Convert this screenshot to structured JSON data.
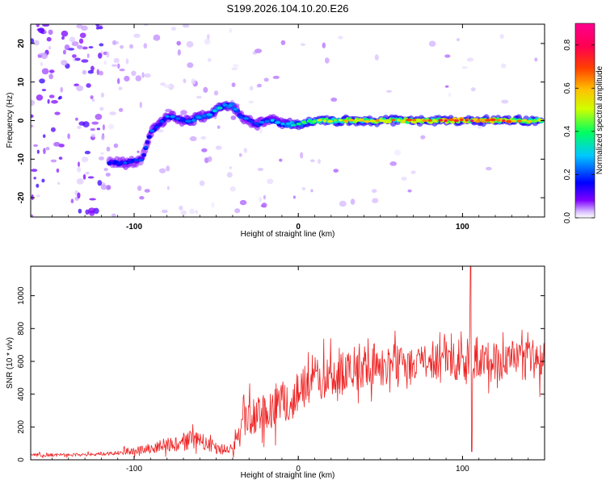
{
  "title": "S199.2026.104.10.20.E26",
  "chart_data": [
    {
      "type": "heatmap",
      "name": "spectrogram",
      "xlabel": "Height of straight line (km)",
      "ylabel": "Frequency (Hz)",
      "xlim": [
        -163,
        150
      ],
      "ylim": [
        -25,
        25
      ],
      "x_ticks": [
        -100,
        0,
        100
      ],
      "y_ticks": [
        -20,
        -10,
        0,
        10,
        20
      ],
      "colorbar": {
        "label": "Normalized spectral amplitude",
        "range": [
          0,
          0.9
        ],
        "ticks": [
          0.0,
          0.2,
          0.4,
          0.6,
          0.8
        ],
        "colors": [
          "#ffffff",
          "#8000ff",
          "#0000ff",
          "#00ffff",
          "#00ff00",
          "#ffff00",
          "#ff8000",
          "#ff0000",
          "#ff00a0"
        ]
      },
      "ridge": {
        "x": [
          -115,
          -105,
          -95,
          -90,
          -85,
          -80,
          -75,
          -70,
          -65,
          -60,
          -55,
          -50,
          -45,
          -40,
          -35,
          -30,
          -25,
          -20,
          -15,
          -10,
          -5,
          0,
          10,
          30,
          50,
          70,
          90,
          110,
          130,
          148
        ],
        "freq": [
          -11,
          -11,
          -10,
          -3,
          -1,
          1,
          1,
          0,
          0,
          1,
          1,
          3,
          4,
          4,
          1,
          0,
          -1,
          0,
          0,
          -1,
          -1,
          -1,
          0,
          0,
          0,
          0,
          0,
          0,
          0,
          0
        ],
        "amplitude": [
          0.2,
          0.25,
          0.2,
          0.25,
          0.25,
          0.3,
          0.25,
          0.25,
          0.3,
          0.3,
          0.3,
          0.35,
          0.35,
          0.3,
          0.25,
          0.25,
          0.25,
          0.25,
          0.3,
          0.3,
          0.35,
          0.4,
          0.5,
          0.6,
          0.65,
          0.7,
          0.75,
          0.85,
          0.75,
          0.6
        ]
      }
    },
    {
      "type": "line",
      "name": "snr",
      "xlabel": "Height of straight line (km)",
      "ylabel": "SNR (10 * v/v)",
      "xlim": [
        -163,
        150
      ],
      "ylim": [
        0,
        1180
      ],
      "x_ticks": [
        -100,
        0,
        100
      ],
      "y_ticks": [
        0,
        200,
        400,
        600,
        800,
        1000
      ],
      "color": "#ee2222",
      "series": [
        {
          "name": "SNR envelope",
          "x": [
            -163,
            -150,
            -140,
            -130,
            -120,
            -110,
            -105,
            -100,
            -95,
            -90,
            -85,
            -80,
            -75,
            -70,
            -65,
            -60,
            -55,
            -50,
            -45,
            -40,
            -38,
            -35,
            -30,
            -25,
            -20,
            -15,
            -10,
            -5,
            0,
            5,
            10,
            15,
            20,
            25,
            30,
            35,
            40,
            45,
            50,
            55,
            60,
            65,
            70,
            75,
            80,
            85,
            90,
            95,
            100,
            103,
            105,
            107,
            110,
            115,
            120,
            125,
            130,
            135,
            140,
            145,
            150
          ],
          "mean": [
            30,
            28,
            30,
            32,
            35,
            40,
            55,
            55,
            60,
            70,
            80,
            90,
            100,
            110,
            120,
            115,
            90,
            75,
            65,
            60,
            140,
            200,
            250,
            300,
            320,
            330,
            360,
            380,
            400,
            430,
            470,
            500,
            520,
            530,
            540,
            545,
            550,
            560,
            560,
            570,
            590,
            600,
            600,
            590,
            590,
            600,
            610,
            600,
            600,
            580,
            520,
            600,
            620,
            600,
            600,
            590,
            610,
            600,
            600,
            590,
            600
          ],
          "spread": [
            18,
            18,
            18,
            18,
            20,
            25,
            40,
            40,
            45,
            55,
            65,
            75,
            90,
            100,
            110,
            100,
            80,
            70,
            60,
            60,
            120,
            170,
            210,
            230,
            240,
            250,
            250,
            250,
            240,
            250,
            250,
            240,
            230,
            220,
            220,
            220,
            210,
            210,
            210,
            210,
            200,
            200,
            200,
            190,
            190,
            200,
            210,
            210,
            210,
            300,
            550,
            300,
            220,
            210,
            210,
            200,
            210,
            210,
            220,
            220,
            220
          ]
        }
      ]
    }
  ]
}
